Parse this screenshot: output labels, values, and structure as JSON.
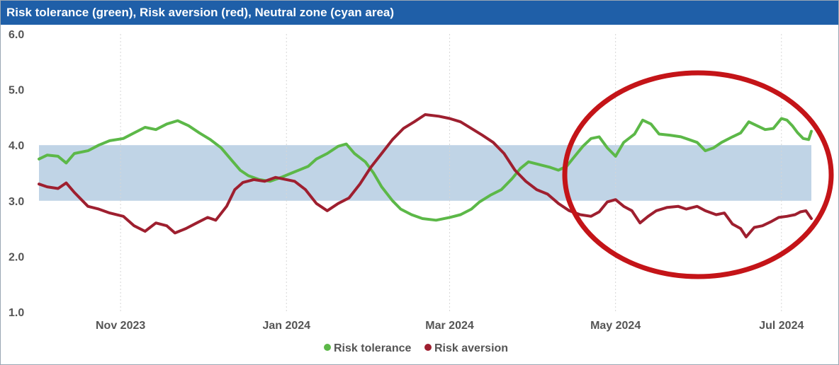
{
  "chart_data": {
    "type": "line",
    "title": "Risk tolerance (green), Risk aversion (red), Neutral zone (cyan area)",
    "x_tick_labels": [
      "Nov 2023",
      "Jan 2024",
      "Mar 2024",
      "May 2024",
      "Jul 2024"
    ],
    "x_range": [
      "2023-10-02",
      "2024-07-12"
    ],
    "ylim": [
      1.0,
      6.0
    ],
    "y_ticks": [
      "1.0",
      "2.0",
      "3.0",
      "4.0",
      "5.0",
      "6.0"
    ],
    "grid": "vertical dotted",
    "neutral_zone": {
      "from": 3.0,
      "to": 4.0,
      "color": "#c0d4e6"
    },
    "legend_position": "bottom-center",
    "series": [
      {
        "name": "Risk tolerance",
        "color": "#5cb848",
        "points": [
          [
            "2023-10-02",
            3.75
          ],
          [
            "2023-10-05",
            3.82
          ],
          [
            "2023-10-09",
            3.8
          ],
          [
            "2023-10-12",
            3.68
          ],
          [
            "2023-10-15",
            3.85
          ],
          [
            "2023-10-20",
            3.9
          ],
          [
            "2023-10-24",
            4.0
          ],
          [
            "2023-10-28",
            4.08
          ],
          [
            "2023-11-02",
            4.12
          ],
          [
            "2023-11-06",
            4.22
          ],
          [
            "2023-11-10",
            4.32
          ],
          [
            "2023-11-14",
            4.28
          ],
          [
            "2023-11-18",
            4.38
          ],
          [
            "2023-11-22",
            4.44
          ],
          [
            "2023-11-26",
            4.35
          ],
          [
            "2023-11-30",
            4.22
          ],
          [
            "2023-12-04",
            4.1
          ],
          [
            "2023-12-08",
            3.95
          ],
          [
            "2023-12-12",
            3.72
          ],
          [
            "2023-12-15",
            3.55
          ],
          [
            "2023-12-18",
            3.45
          ],
          [
            "2023-12-22",
            3.38
          ],
          [
            "2023-12-26",
            3.35
          ],
          [
            "2023-12-30",
            3.42
          ],
          [
            "2024-01-03",
            3.5
          ],
          [
            "2024-01-06",
            3.56
          ],
          [
            "2024-01-09",
            3.62
          ],
          [
            "2024-01-12",
            3.75
          ],
          [
            "2024-01-16",
            3.85
          ],
          [
            "2024-01-20",
            3.98
          ],
          [
            "2024-01-23",
            4.02
          ],
          [
            "2024-01-26",
            3.85
          ],
          [
            "2024-01-30",
            3.7
          ],
          [
            "2024-02-02",
            3.5
          ],
          [
            "2024-02-05",
            3.25
          ],
          [
            "2024-02-09",
            3.0
          ],
          [
            "2024-02-12",
            2.85
          ],
          [
            "2024-02-16",
            2.75
          ],
          [
            "2024-02-20",
            2.68
          ],
          [
            "2024-02-25",
            2.65
          ],
          [
            "2024-03-01",
            2.7
          ],
          [
            "2024-03-05",
            2.75
          ],
          [
            "2024-03-09",
            2.85
          ],
          [
            "2024-03-12",
            2.98
          ],
          [
            "2024-03-16",
            3.1
          ],
          [
            "2024-03-20",
            3.2
          ],
          [
            "2024-03-24",
            3.4
          ],
          [
            "2024-03-27",
            3.58
          ],
          [
            "2024-03-30",
            3.7
          ],
          [
            "2024-04-03",
            3.65
          ],
          [
            "2024-04-07",
            3.6
          ],
          [
            "2024-04-10",
            3.55
          ],
          [
            "2024-04-13",
            3.62
          ],
          [
            "2024-04-16",
            3.8
          ],
          [
            "2024-04-19",
            3.98
          ],
          [
            "2024-04-22",
            4.12
          ],
          [
            "2024-04-25",
            4.15
          ],
          [
            "2024-04-28",
            3.95
          ],
          [
            "2024-05-01",
            3.8
          ],
          [
            "2024-05-04",
            4.05
          ],
          [
            "2024-05-08",
            4.2
          ],
          [
            "2024-05-11",
            4.45
          ],
          [
            "2024-05-14",
            4.38
          ],
          [
            "2024-05-17",
            4.2
          ],
          [
            "2024-05-21",
            4.18
          ],
          [
            "2024-05-25",
            4.15
          ],
          [
            "2024-05-28",
            4.1
          ],
          [
            "2024-05-31",
            4.05
          ],
          [
            "2024-06-03",
            3.9
          ],
          [
            "2024-06-06",
            3.95
          ],
          [
            "2024-06-09",
            4.05
          ],
          [
            "2024-06-13",
            4.15
          ],
          [
            "2024-06-16",
            4.22
          ],
          [
            "2024-06-19",
            4.42
          ],
          [
            "2024-06-22",
            4.35
          ],
          [
            "2024-06-25",
            4.28
          ],
          [
            "2024-06-28",
            4.3
          ],
          [
            "2024-07-01",
            4.48
          ],
          [
            "2024-07-03",
            4.45
          ],
          [
            "2024-07-05",
            4.35
          ],
          [
            "2024-07-07",
            4.22
          ],
          [
            "2024-07-09",
            4.12
          ],
          [
            "2024-07-11",
            4.1
          ],
          [
            "2024-07-12",
            4.25
          ]
        ]
      },
      {
        "name": "Risk aversion",
        "color": "#9e1f2f",
        "points": [
          [
            "2023-10-02",
            3.3
          ],
          [
            "2023-10-05",
            3.25
          ],
          [
            "2023-10-09",
            3.22
          ],
          [
            "2023-10-12",
            3.32
          ],
          [
            "2023-10-15",
            3.15
          ],
          [
            "2023-10-20",
            2.9
          ],
          [
            "2023-10-24",
            2.85
          ],
          [
            "2023-10-28",
            2.78
          ],
          [
            "2023-11-02",
            2.72
          ],
          [
            "2023-11-06",
            2.55
          ],
          [
            "2023-11-10",
            2.45
          ],
          [
            "2023-11-14",
            2.6
          ],
          [
            "2023-11-18",
            2.55
          ],
          [
            "2023-11-21",
            2.42
          ],
          [
            "2023-11-25",
            2.5
          ],
          [
            "2023-11-29",
            2.6
          ],
          [
            "2023-12-03",
            2.7
          ],
          [
            "2023-12-06",
            2.65
          ],
          [
            "2023-12-10",
            2.9
          ],
          [
            "2023-12-13",
            3.2
          ],
          [
            "2023-12-16",
            3.33
          ],
          [
            "2023-12-20",
            3.38
          ],
          [
            "2023-12-24",
            3.35
          ],
          [
            "2023-12-28",
            3.42
          ],
          [
            "2024-01-01",
            3.38
          ],
          [
            "2024-01-04",
            3.35
          ],
          [
            "2024-01-08",
            3.2
          ],
          [
            "2024-01-12",
            2.95
          ],
          [
            "2024-01-16",
            2.82
          ],
          [
            "2024-01-20",
            2.95
          ],
          [
            "2024-01-24",
            3.05
          ],
          [
            "2024-01-28",
            3.3
          ],
          [
            "2024-02-01",
            3.6
          ],
          [
            "2024-02-05",
            3.85
          ],
          [
            "2024-02-09",
            4.1
          ],
          [
            "2024-02-13",
            4.3
          ],
          [
            "2024-02-17",
            4.42
          ],
          [
            "2024-02-21",
            4.55
          ],
          [
            "2024-02-26",
            4.52
          ],
          [
            "2024-03-01",
            4.48
          ],
          [
            "2024-03-05",
            4.42
          ],
          [
            "2024-03-09",
            4.3
          ],
          [
            "2024-03-13",
            4.18
          ],
          [
            "2024-03-17",
            4.05
          ],
          [
            "2024-03-21",
            3.85
          ],
          [
            "2024-03-25",
            3.55
          ],
          [
            "2024-03-29",
            3.35
          ],
          [
            "2024-04-02",
            3.2
          ],
          [
            "2024-04-06",
            3.12
          ],
          [
            "2024-04-10",
            2.95
          ],
          [
            "2024-04-14",
            2.82
          ],
          [
            "2024-04-18",
            2.75
          ],
          [
            "2024-04-22",
            2.72
          ],
          [
            "2024-04-25",
            2.8
          ],
          [
            "2024-04-28",
            2.98
          ],
          [
            "2024-05-01",
            3.02
          ],
          [
            "2024-05-04",
            2.9
          ],
          [
            "2024-05-07",
            2.82
          ],
          [
            "2024-05-10",
            2.6
          ],
          [
            "2024-05-13",
            2.72
          ],
          [
            "2024-05-16",
            2.82
          ],
          [
            "2024-05-20",
            2.88
          ],
          [
            "2024-05-24",
            2.9
          ],
          [
            "2024-05-27",
            2.85
          ],
          [
            "2024-05-31",
            2.9
          ],
          [
            "2024-06-03",
            2.82
          ],
          [
            "2024-06-07",
            2.75
          ],
          [
            "2024-06-10",
            2.78
          ],
          [
            "2024-06-13",
            2.58
          ],
          [
            "2024-06-16",
            2.5
          ],
          [
            "2024-06-18",
            2.35
          ],
          [
            "2024-06-21",
            2.52
          ],
          [
            "2024-06-24",
            2.55
          ],
          [
            "2024-06-27",
            2.62
          ],
          [
            "2024-06-30",
            2.7
          ],
          [
            "2024-07-03",
            2.72
          ],
          [
            "2024-07-06",
            2.75
          ],
          [
            "2024-07-08",
            2.8
          ],
          [
            "2024-07-10",
            2.82
          ],
          [
            "2024-07-12",
            2.68
          ]
        ]
      }
    ]
  }
}
